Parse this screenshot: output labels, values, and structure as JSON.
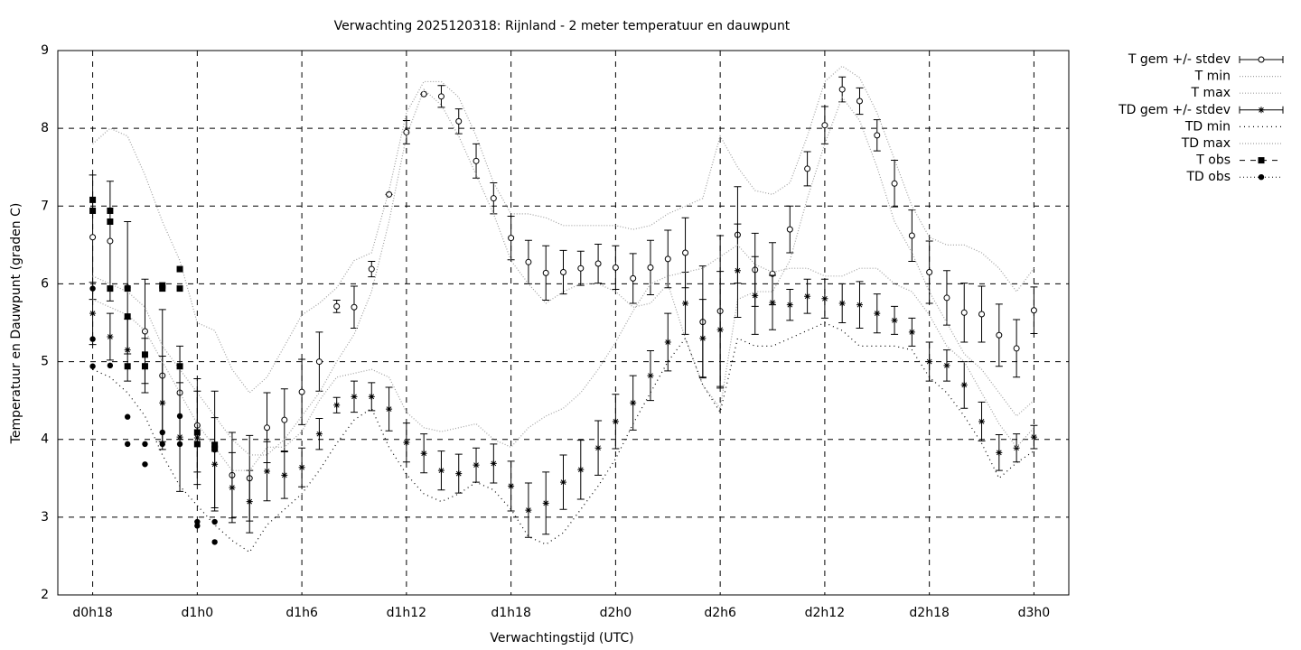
{
  "chart_data": {
    "type": "errorbar",
    "title": "Verwachting 2025120318: Rijnland - 2 meter temperatuur en dauwpunt",
    "x_label": "Verwachtingstijd (UTC)",
    "y_label": "Temperatuur en Dauwpunt (graden C)",
    "xlim": [
      16,
      74
    ],
    "ylim": [
      2,
      9
    ],
    "xticks": [
      {
        "value": 18,
        "label": "d0h18"
      },
      {
        "value": 24,
        "label": "d1h0"
      },
      {
        "value": 30,
        "label": "d1h6"
      },
      {
        "value": 36,
        "label": "d1h12"
      },
      {
        "value": 42,
        "label": "d1h18"
      },
      {
        "value": 48,
        "label": "d2h0"
      },
      {
        "value": 54,
        "label": "d2h6"
      },
      {
        "value": 60,
        "label": "d2h12"
      },
      {
        "value": 66,
        "label": "d2h18"
      },
      {
        "value": 72,
        "label": "d3h0"
      }
    ],
    "yticks": [
      2,
      3,
      4,
      5,
      6,
      7,
      8,
      9
    ],
    "grid": true,
    "legend": "outside-right",
    "x": [
      18,
      19,
      20,
      21,
      22,
      23,
      24,
      25,
      26,
      27,
      28,
      29,
      30,
      31,
      32,
      33,
      34,
      35,
      36,
      37,
      38,
      39,
      40,
      41,
      42,
      43,
      44,
      45,
      46,
      47,
      48,
      49,
      50,
      51,
      52,
      53,
      54,
      55,
      56,
      57,
      58,
      59,
      60,
      61,
      62,
      63,
      64,
      65,
      66,
      67,
      68,
      69,
      70,
      71,
      72
    ],
    "series": [
      {
        "name": "T gem +/- stdev",
        "kind": "errorbar",
        "marker": "circle",
        "color": "#000000",
        "values": [
          6.6,
          6.55,
          5.95,
          5.39,
          4.82,
          4.6,
          4.18,
          3.87,
          3.54,
          3.5,
          4.15,
          4.25,
          4.61,
          5.0,
          5.71,
          5.7,
          6.19,
          7.15,
          7.95,
          8.44,
          8.41,
          8.09,
          7.58,
          7.1,
          6.59,
          6.28,
          6.14,
          6.15,
          6.2,
          6.26,
          6.21,
          6.07,
          6.21,
          6.32,
          6.4,
          5.51,
          5.65,
          6.63,
          6.18,
          6.13,
          6.7,
          7.48,
          8.04,
          8.5,
          8.35,
          7.91,
          7.29,
          6.62,
          6.15,
          5.82,
          5.63,
          5.61,
          5.34,
          5.17,
          5.66
        ],
        "errors": [
          0.8,
          0.77,
          0.85,
          0.67,
          0.85,
          0.6,
          0.6,
          0.75,
          0.55,
          0.55,
          0.45,
          0.4,
          0.42,
          0.38,
          0.08,
          0.27,
          0.1,
          0,
          0.15,
          0,
          0.14,
          0.16,
          0.22,
          0.2,
          0.28,
          0.28,
          0.35,
          0.28,
          0.22,
          0.25,
          0.28,
          0.32,
          0.35,
          0.37,
          0.45,
          0.72,
          0.97,
          0.62,
          0.47,
          0.4,
          0.3,
          0.22,
          0.24,
          0.16,
          0.17,
          0.2,
          0.3,
          0.33,
          0.4,
          0.35,
          0.38,
          0.36,
          0.4,
          0.37,
          0.3
        ]
      },
      {
        "name": "T min",
        "kind": "line",
        "color": "#a0a0a0",
        "values": [
          6.1,
          6.0,
          5.9,
          5.7,
          5.2,
          4.9,
          4.6,
          4.3,
          4.0,
          3.8,
          3.8,
          4.0,
          4.3,
          4.6,
          5.0,
          5.35,
          5.9,
          6.8,
          7.9,
          8.5,
          8.3,
          7.9,
          7.4,
          6.9,
          6.3,
          6.0,
          5.75,
          5.9,
          6.0,
          6.0,
          5.9,
          5.7,
          5.75,
          6.0,
          5.3,
          4.7,
          4.4,
          5.8,
          5.9,
          5.9,
          6.3,
          7.1,
          7.8,
          8.4,
          8.1,
          7.5,
          6.8,
          6.4,
          5.9,
          5.5,
          5.1,
          4.9,
          4.6,
          4.3,
          4.5
        ]
      },
      {
        "name": "T max",
        "kind": "line",
        "color": "#a0a0a0",
        "values": [
          7.8,
          8.0,
          7.9,
          7.4,
          6.8,
          6.3,
          5.5,
          5.4,
          4.9,
          4.6,
          4.8,
          5.2,
          5.6,
          5.75,
          5.95,
          6.3,
          6.4,
          7.2,
          8.2,
          8.6,
          8.6,
          8.4,
          7.9,
          7.3,
          6.9,
          6.9,
          6.85,
          6.75,
          6.75,
          6.75,
          6.75,
          6.7,
          6.75,
          6.9,
          7.0,
          7.1,
          7.9,
          7.5,
          7.2,
          7.15,
          7.3,
          7.9,
          8.6,
          8.8,
          8.65,
          8.2,
          7.6,
          7.0,
          6.6,
          6.5,
          6.5,
          6.4,
          6.2,
          5.9,
          6.2
        ]
      },
      {
        "name": "TD gem +/- stdev",
        "kind": "errorbar",
        "marker": "star",
        "color": "#000000",
        "values": [
          5.62,
          5.32,
          5.15,
          4.95,
          4.47,
          4.03,
          4.02,
          3.68,
          3.38,
          3.2,
          3.59,
          3.54,
          3.64,
          4.07,
          4.44,
          4.55,
          4.55,
          4.39,
          3.96,
          3.82,
          3.6,
          3.56,
          3.67,
          3.69,
          3.4,
          3.09,
          3.18,
          3.45,
          3.61,
          3.89,
          4.23,
          4.47,
          4.82,
          5.25,
          5.75,
          5.3,
          5.41,
          6.17,
          5.85,
          5.76,
          5.73,
          5.84,
          5.81,
          5.75,
          5.73,
          5.62,
          5.53,
          5.38,
          5.0,
          4.95,
          4.7,
          4.23,
          3.83,
          3.89,
          4.03
        ],
        "errors": [
          0.4,
          0.3,
          0.4,
          0.35,
          0.6,
          0.7,
          0.6,
          0.6,
          0.45,
          0.4,
          0.38,
          0.3,
          0.25,
          0.2,
          0.1,
          0.2,
          0.18,
          0.28,
          0.25,
          0.25,
          0.25,
          0.25,
          0.22,
          0.25,
          0.32,
          0.35,
          0.4,
          0.35,
          0.38,
          0.35,
          0.35,
          0.35,
          0.32,
          0.37,
          0.4,
          0.5,
          0.75,
          0.6,
          0.5,
          0.35,
          0.2,
          0.22,
          0.25,
          0.25,
          0.3,
          0.25,
          0.18,
          0.18,
          0.25,
          0.2,
          0.3,
          0.25,
          0.23,
          0.18,
          0.15
        ]
      },
      {
        "name": "TD min",
        "kind": "line",
        "color": "#000000",
        "values": [
          4.9,
          4.8,
          4.6,
          4.3,
          3.8,
          3.4,
          3.15,
          2.9,
          2.7,
          2.55,
          2.9,
          3.1,
          3.3,
          3.6,
          3.95,
          4.25,
          4.4,
          3.9,
          3.55,
          3.3,
          3.2,
          3.3,
          3.45,
          3.35,
          3.1,
          2.75,
          2.65,
          2.8,
          3.1,
          3.4,
          3.75,
          4.2,
          4.6,
          5.0,
          5.3,
          4.7,
          4.35,
          5.3,
          5.2,
          5.2,
          5.3,
          5.4,
          5.5,
          5.4,
          5.2,
          5.2,
          5.2,
          5.15,
          4.8,
          4.6,
          4.3,
          3.95,
          3.5,
          3.7,
          3.85
        ]
      },
      {
        "name": "TD max",
        "kind": "line",
        "color": "#a0a0a0",
        "values": [
          5.8,
          5.7,
          5.6,
          5.4,
          5.0,
          4.6,
          4.2,
          3.9,
          3.6,
          3.6,
          3.9,
          3.9,
          4.1,
          4.5,
          4.8,
          4.85,
          4.9,
          4.8,
          4.35,
          4.15,
          4.1,
          4.15,
          4.2,
          4.0,
          3.9,
          4.15,
          4.3,
          4.4,
          4.6,
          4.9,
          5.25,
          5.65,
          6.0,
          6.1,
          6.15,
          6.2,
          6.35,
          6.5,
          6.25,
          6.15,
          6.2,
          6.2,
          6.1,
          6.1,
          6.2,
          6.2,
          6.0,
          5.9,
          5.6,
          5.2,
          5.0,
          4.6,
          4.2,
          3.9,
          4.15
        ]
      },
      {
        "name": "T obs",
        "kind": "points",
        "marker": "square",
        "color": "#000000",
        "x": [
          18,
          18,
          19,
          19,
          19,
          20,
          20,
          20,
          21,
          21,
          22,
          22,
          23,
          23,
          23,
          24,
          24,
          25,
          25
        ],
        "values": [
          7.08,
          6.94,
          6.94,
          6.8,
          5.94,
          5.94,
          5.58,
          4.94,
          5.09,
          4.94,
          5.98,
          5.94,
          6.19,
          5.94,
          4.94,
          4.09,
          3.94,
          3.93,
          3.88
        ]
      },
      {
        "name": "TD obs",
        "kind": "points",
        "marker": "dot",
        "color": "#000000",
        "x": [
          18,
          18,
          18,
          19,
          20,
          20,
          21,
          21,
          22,
          22,
          23,
          23,
          24,
          24,
          25,
          25
        ],
        "values": [
          5.94,
          5.29,
          4.94,
          4.95,
          4.29,
          3.94,
          3.94,
          3.68,
          4.09,
          3.94,
          4.3,
          3.94,
          2.94,
          2.89,
          2.94,
          2.68
        ]
      }
    ]
  }
}
